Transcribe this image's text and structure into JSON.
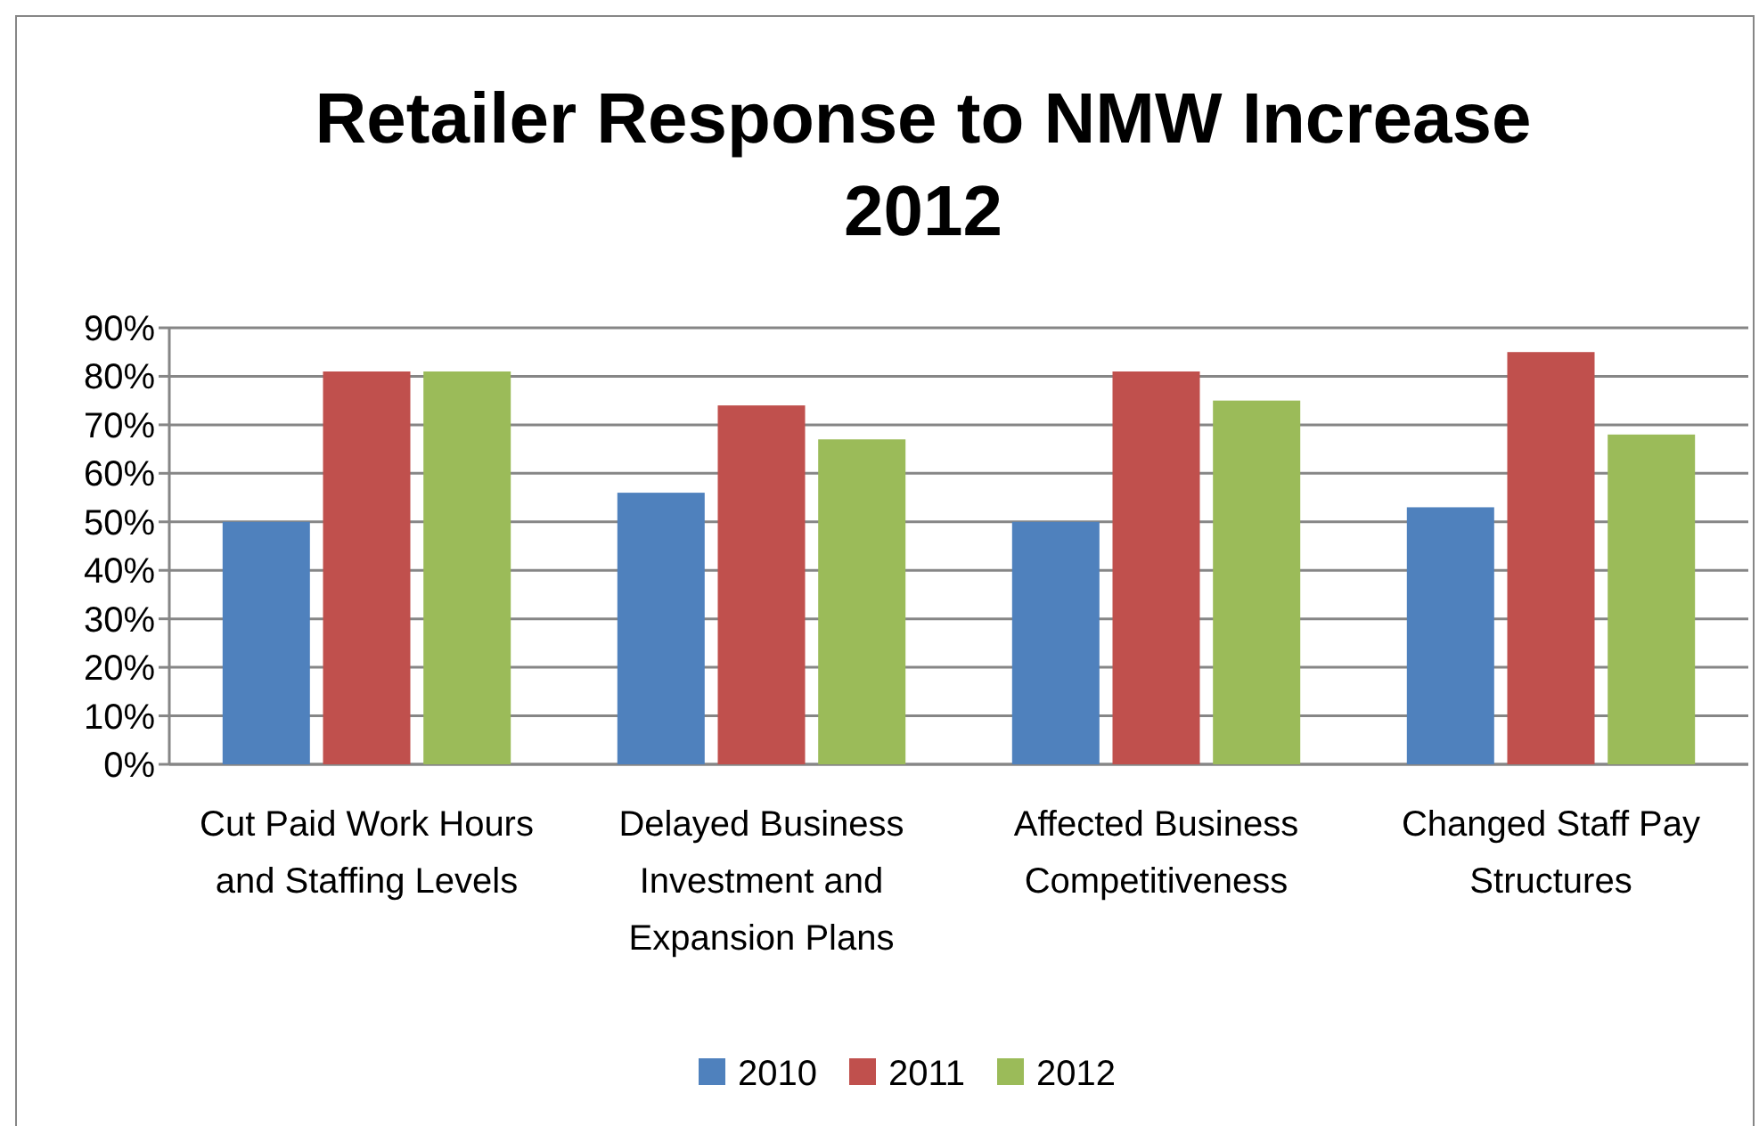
{
  "chart_data": {
    "type": "bar",
    "title": "Retailer Response to NMW Increase 2012",
    "categories": [
      "Cut Paid Work Hours and Staffing Levels",
      "Delayed Business Investment and Expansion Plans",
      "Affected Business Competitiveness",
      "Changed Staff Pay Structures"
    ],
    "series": [
      {
        "name": "2010",
        "color": "#4f81bd",
        "values": [
          50,
          56,
          50,
          53
        ]
      },
      {
        "name": "2011",
        "color": "#c0504d",
        "values": [
          81,
          74,
          81,
          85
        ]
      },
      {
        "name": "2012",
        "color": "#9bbb59",
        "values": [
          81,
          67,
          75,
          68
        ]
      }
    ],
    "ylim": [
      0,
      90
    ],
    "yticks": [
      {
        "value": 0,
        "label": "0%"
      },
      {
        "value": 10,
        "label": "10%"
      },
      {
        "value": 20,
        "label": "20%"
      },
      {
        "value": 30,
        "label": "30%"
      },
      {
        "value": 40,
        "label": "40%"
      },
      {
        "value": 50,
        "label": "50%"
      },
      {
        "value": 60,
        "label": "60%"
      },
      {
        "value": 70,
        "label": "70%"
      },
      {
        "value": 80,
        "label": "80%"
      },
      {
        "value": 90,
        "label": "90%"
      }
    ],
    "grid": "y",
    "legend": "bottom"
  }
}
